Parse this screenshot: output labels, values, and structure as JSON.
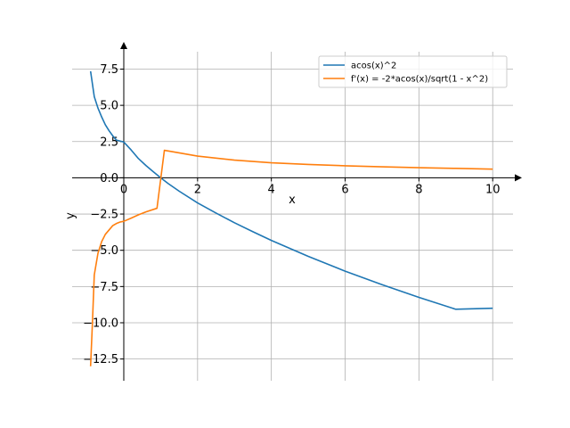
{
  "chart_data": {
    "type": "line",
    "title": "",
    "xlabel": "x",
    "ylabel": "y",
    "xlim": [
      -1.4,
      10.55
    ],
    "ylim": [
      -14.0,
      8.7
    ],
    "xticks": [
      0,
      2,
      4,
      6,
      8,
      10
    ],
    "xtick_labels": [
      "0",
      "2",
      "4",
      "6",
      "8",
      "10"
    ],
    "yticks": [
      7.5,
      5.0,
      2.5,
      0.0,
      -2.5,
      -5.0,
      -7.5,
      -10.0,
      -12.5
    ],
    "ytick_labels": [
      "7.5",
      "5.0",
      "2.5",
      "0.0",
      "−2.5",
      "−5.0",
      "−7.5",
      "−10.0",
      "−12.5"
    ],
    "grid": true,
    "legend_position": "top-right",
    "series": [
      {
        "name": "acos(x)^2",
        "color": "#1f77b4",
        "x": [
          -0.9,
          -0.8,
          -0.7,
          -0.6,
          -0.5,
          -0.4,
          -0.3,
          -0.2,
          0.0,
          0.2,
          0.4,
          0.6,
          0.8,
          1.0,
          1.2,
          1.5,
          2.0,
          2.5,
          3.0,
          3.5,
          4.0,
          5.0,
          6.0,
          7.0,
          8.0,
          9.0,
          10.0
        ],
        "values": [
          7.35,
          5.6,
          4.81,
          4.2,
          3.66,
          3.25,
          2.9,
          2.6,
          2.47,
          1.92,
          1.32,
          0.85,
          0.42,
          0.0,
          -0.39,
          -0.92,
          -1.73,
          -2.43,
          -3.1,
          -3.72,
          -4.32,
          -5.42,
          -6.44,
          -7.37,
          -8.25,
          -9.07,
          -9.0
        ]
      },
      {
        "name": "f'(x) = -2*acos(x)/sqrt(1 - x^2)",
        "color": "#ff7f0e",
        "x": [
          -0.9,
          -0.85,
          -0.8,
          -0.7,
          -0.6,
          -0.5,
          -0.4,
          -0.3,
          -0.2,
          -0.1,
          0.0,
          0.2,
          0.4,
          0.6,
          0.9,
          1.1,
          1.5,
          2.0,
          3.0,
          4.0,
          5.0,
          6.0,
          7.0,
          8.0,
          9.0,
          10.0
        ],
        "values": [
          -13.0,
          -10.0,
          -6.7,
          -5.2,
          -4.4,
          -3.9,
          -3.6,
          -3.3,
          -3.15,
          -3.05,
          -3.0,
          -2.78,
          -2.55,
          -2.35,
          -2.1,
          1.9,
          1.72,
          1.5,
          1.22,
          1.04,
          0.92,
          0.83,
          0.76,
          0.7,
          0.65,
          0.6
        ]
      }
    ]
  }
}
